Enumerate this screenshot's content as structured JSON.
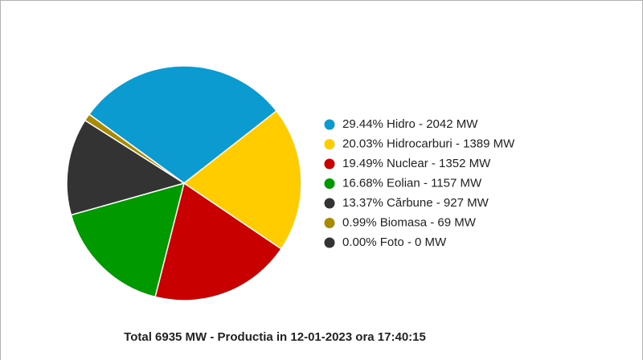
{
  "chart_data": {
    "type": "pie",
    "categories": [
      "29.44% Hidro - 2042 MW",
      "20.03% Hidrocarburi - 1389 MW",
      "19.49% Nuclear - 1352 MW",
      "16.68% Eolian - 1157 MW",
      "13.37% Cărbune - 927 MW",
      "0.99% Biomasa - 69 MW",
      "0.00% Foto - 0 MW"
    ],
    "values": [
      2042,
      1389,
      1352,
      1157,
      927,
      69,
      0
    ],
    "colors": [
      "#0b9bd0",
      "#ffcc00",
      "#c80000",
      "#009a00",
      "#333333",
      "#a88a00",
      "#333333"
    ],
    "legend": "right",
    "caption": "Total 6935 MW - Productia in 12-01-2023 ora 17:40:15"
  }
}
